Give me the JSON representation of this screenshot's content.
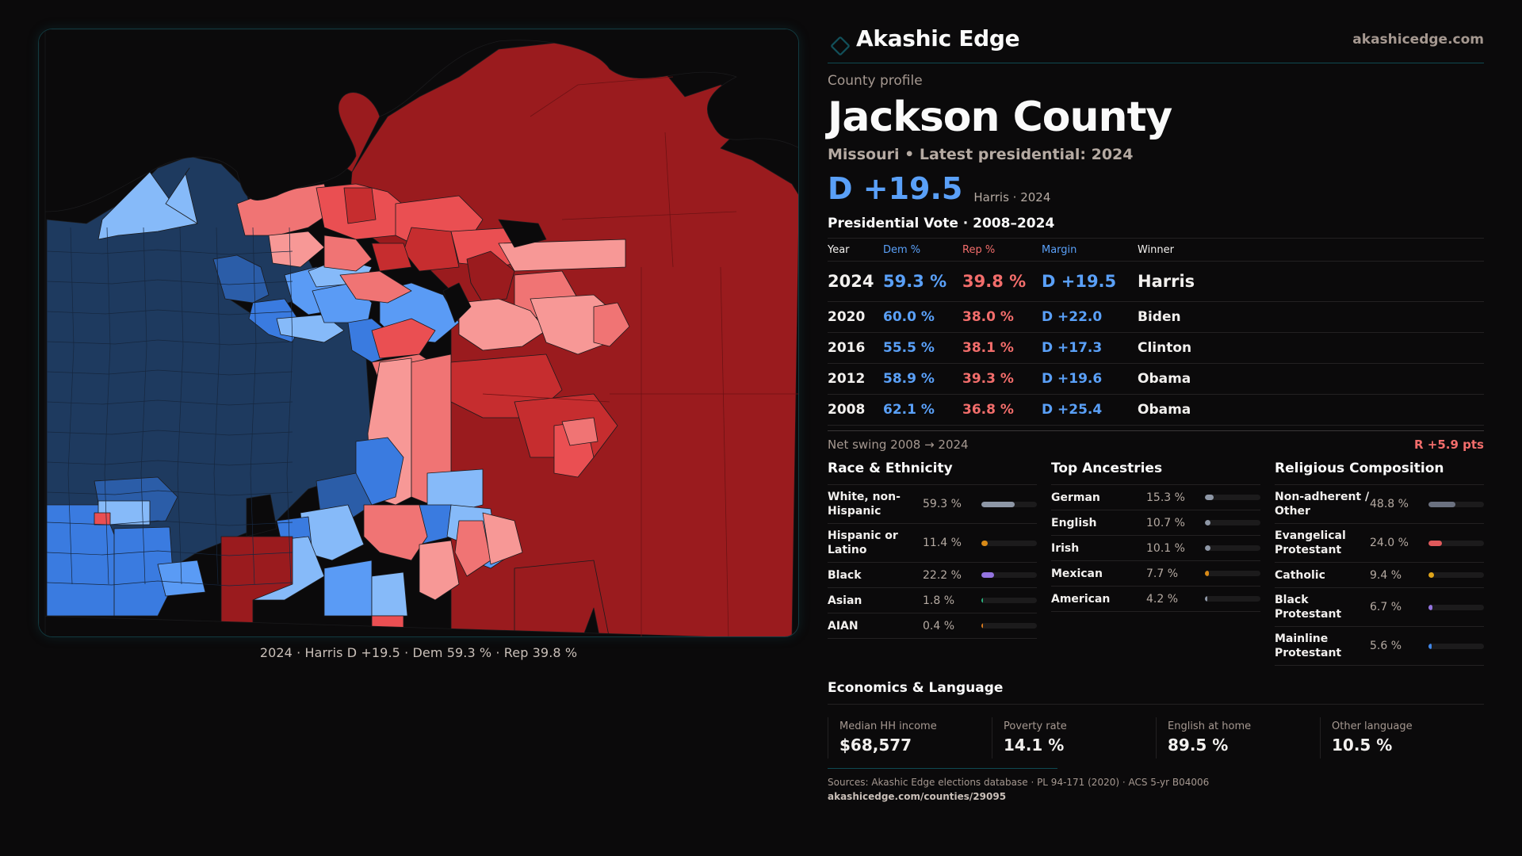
{
  "brand": {
    "name": "Akashic Edge",
    "url": "akashicedge.com",
    "logo_icon": "diamond-outline-icon",
    "accent_color": "#12505a"
  },
  "profile": {
    "eyebrow": "County profile",
    "title": "Jackson County",
    "subtitle": "Missouri • Latest presidential: 2024",
    "headline_margin": "D +19.5",
    "headline_meta": "Harris · 2024"
  },
  "colors": {
    "dem": "#5aa0f8",
    "rep": "#f26d6b"
  },
  "presidential": {
    "title": "Presidential Vote · 2008–2024",
    "columns": [
      "Year",
      "Dem %",
      "Rep %",
      "Margin",
      "Winner"
    ],
    "rows": [
      {
        "year": "2024",
        "dem": "59.3 %",
        "rep": "39.8 %",
        "margin": "D +19.5",
        "winner": "Harris"
      },
      {
        "year": "2020",
        "dem": "60.0 %",
        "rep": "38.0 %",
        "margin": "D +22.0",
        "winner": "Biden"
      },
      {
        "year": "2016",
        "dem": "55.5 %",
        "rep": "38.1 %",
        "margin": "D +17.3",
        "winner": "Clinton"
      },
      {
        "year": "2012",
        "dem": "58.9 %",
        "rep": "39.3 %",
        "margin": "D +19.6",
        "winner": "Obama"
      },
      {
        "year": "2008",
        "dem": "62.1 %",
        "rep": "36.8 %",
        "margin": "D +25.4",
        "winner": "Obama"
      }
    ],
    "net_swing_label": "Net swing 2008 → 2024",
    "net_swing_value": "R +5.9 pts"
  },
  "race": {
    "title": "Race & Ethnicity",
    "items": [
      {
        "label": "White, non-Hispanic",
        "value": "59.3 %",
        "pct": 59.3,
        "color": "#8e97a6"
      },
      {
        "label": "Hispanic or Latino",
        "value": "11.4 %",
        "pct": 11.4,
        "color": "#d98a17"
      },
      {
        "label": "Black",
        "value": "22.2 %",
        "pct": 22.2,
        "color": "#9474e0"
      },
      {
        "label": "Asian",
        "value": "1.8 %",
        "pct": 1.8,
        "color": "#2bb37e"
      },
      {
        "label": "AIAN",
        "value": "0.4 %",
        "pct": 0.4,
        "color": "#d97a1e"
      }
    ]
  },
  "ancestry": {
    "title": "Top Ancestries",
    "items": [
      {
        "label": "German",
        "value": "15.3 %",
        "pct": 15.3,
        "color": "#8e97a6"
      },
      {
        "label": "English",
        "value": "10.7 %",
        "pct": 10.7,
        "color": "#8e97a6"
      },
      {
        "label": "Irish",
        "value": "10.1 %",
        "pct": 10.1,
        "color": "#8e97a6"
      },
      {
        "label": "Mexican",
        "value": "7.7 %",
        "pct": 7.7,
        "color": "#d98a17"
      },
      {
        "label": "American",
        "value": "4.2 %",
        "pct": 4.2,
        "color": "#8e97a6"
      }
    ]
  },
  "religion": {
    "title": "Religious Composition",
    "items": [
      {
        "label": "Non-adherent / Other",
        "value": "48.8 %",
        "pct": 48.8,
        "color": "#6b7180"
      },
      {
        "label": "Evangelical Protestant",
        "value": "24.0 %",
        "pct": 24.0,
        "color": "#e0595b"
      },
      {
        "label": "Catholic",
        "value": "9.4 %",
        "pct": 9.4,
        "color": "#e0a51a"
      },
      {
        "label": "Black Protestant",
        "value": "6.7 %",
        "pct": 6.7,
        "color": "#9474e0"
      },
      {
        "label": "Mainline Protestant",
        "value": "5.6 %",
        "pct": 5.6,
        "color": "#3f86e8"
      }
    ]
  },
  "economics": {
    "title": "Economics & Language",
    "items": [
      {
        "label": "Median HH income",
        "value": "$68,577"
      },
      {
        "label": "Poverty rate",
        "value": "14.1 %"
      },
      {
        "label": "English at home",
        "value": "89.5 %"
      },
      {
        "label": "Other language",
        "value": "10.5 %"
      }
    ]
  },
  "sources": {
    "line": "Sources: Akashic Edge elections database · PL 94-171 (2020) · ACS 5-yr B04006",
    "url": "akashicedge.com/counties/29095"
  },
  "map": {
    "caption": "2024 · Harris D +19.5 · Dem 59.3 % · Rep 39.8 %",
    "legend_scale": {
      "dem_strong": "#1e3a5f",
      "dem_lean": "#2b5da8",
      "dem_mid": "#3a7be0",
      "dem_soft": "#5a9bf5",
      "dem_light": "#86baf9",
      "rep_light": "#f79896",
      "rep_soft": "#f07474",
      "rep_mid": "#ea4f52",
      "rep_lean": "#c62d2f",
      "rep_strong": "#9a1b1e"
    }
  }
}
